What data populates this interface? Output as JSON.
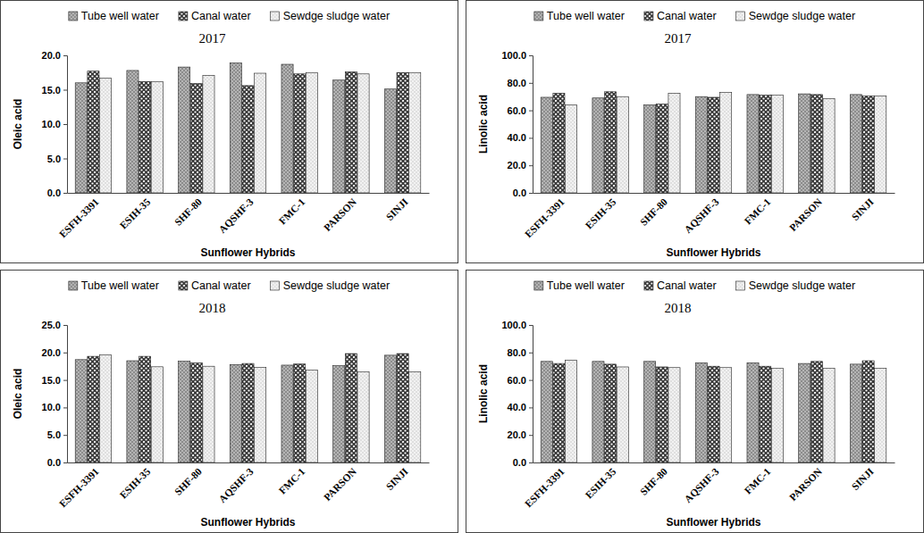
{
  "chart_data": [
    {
      "type": "bar",
      "title": "2017",
      "x_label": "Sunflower Hybrids",
      "y_label": "Oleic acid",
      "categories": [
        "ESFH-3391",
        "ESIH-35",
        "SHF-80",
        "AQSHF-3",
        "FMC-1",
        "PARSON",
        "SINJI"
      ],
      "series": [
        {
          "name": "Tube well water",
          "color": "#8c8c8c",
          "values": [
            16.0,
            17.8,
            18.3,
            18.9,
            18.7,
            16.4,
            15.1
          ]
        },
        {
          "name": "Canal water",
          "color": "#3c3c3c",
          "values": [
            17.7,
            16.2,
            15.9,
            15.6,
            17.3,
            17.6,
            17.5
          ]
        },
        {
          "name": "Sewdge sludge water",
          "color": "#f2f2f2",
          "values": [
            16.7,
            16.2,
            17.1,
            17.4,
            17.5,
            17.3,
            17.5
          ]
        }
      ],
      "ylim": [
        0,
        20
      ],
      "yticks": [
        {
          "value": 0,
          "label": "0.0"
        },
        {
          "value": 5,
          "label": "5.0"
        },
        {
          "value": 10,
          "label": "10.0"
        },
        {
          "value": 15,
          "label": "15.0"
        },
        {
          "value": 20,
          "label": "20.0"
        }
      ],
      "legend": "top",
      "grid": false
    },
    {
      "type": "bar",
      "title": "2017",
      "x_label": "Sunflower Hybrids",
      "y_label": "Linolic acid",
      "categories": [
        "ESFH-3391",
        "ESIH-35",
        "SHF-80",
        "AQSHF-3",
        "FMC-1",
        "PARSON",
        "SINJI"
      ],
      "series": [
        {
          "name": "Tube well water",
          "color": "#8c8c8c",
          "values": [
            69.5,
            69.0,
            64.0,
            70.0,
            71.5,
            72.0,
            71.5
          ]
        },
        {
          "name": "Canal water",
          "color": "#3c3c3c",
          "values": [
            72.5,
            73.5,
            64.5,
            69.5,
            71.0,
            71.5,
            70.5
          ]
        },
        {
          "name": "Sewdge sludge water",
          "color": "#f2f2f2",
          "values": [
            64.0,
            70.0,
            72.5,
            73.0,
            71.0,
            68.5,
            70.5
          ]
        }
      ],
      "ylim": [
        0,
        100
      ],
      "yticks": [
        {
          "value": 0,
          "label": "0.0"
        },
        {
          "value": 20,
          "label": "20.0"
        },
        {
          "value": 40,
          "label": "40.0"
        },
        {
          "value": 60,
          "label": "60.0"
        },
        {
          "value": 80,
          "label": "80.0"
        },
        {
          "value": 100,
          "label": "100.0"
        }
      ],
      "legend": "top",
      "grid": false
    },
    {
      "type": "bar",
      "title": "2018",
      "x_label": "Sunflower Hybrids",
      "y_label": "Oleic acid",
      "categories": [
        "ESFH-3391",
        "ESIH-35",
        "SHF-80",
        "AQSHF-3",
        "FMC-1",
        "PARSON",
        "SINJI"
      ],
      "series": [
        {
          "name": "Tube well water",
          "color": "#8c8c8c",
          "values": [
            18.7,
            18.5,
            18.4,
            17.8,
            17.7,
            17.6,
            19.5
          ]
        },
        {
          "name": "Canal water",
          "color": "#3c3c3c",
          "values": [
            19.3,
            19.3,
            18.1,
            18.0,
            17.9,
            19.8,
            19.8
          ]
        },
        {
          "name": "Sewdge sludge water",
          "color": "#f2f2f2",
          "values": [
            19.6,
            17.4,
            17.5,
            17.3,
            16.8,
            16.5,
            16.5
          ]
        }
      ],
      "ylim": [
        0,
        25
      ],
      "yticks": [
        {
          "value": 0,
          "label": "0.0"
        },
        {
          "value": 5,
          "label": "5.0"
        },
        {
          "value": 10,
          "label": "10.0"
        },
        {
          "value": 15,
          "label": "15.0"
        },
        {
          "value": 20,
          "label": "20.0"
        },
        {
          "value": 25,
          "label": "25.0"
        }
      ],
      "legend": "top",
      "grid": false
    },
    {
      "type": "bar",
      "title": "2018",
      "x_label": "Sunflower Hybrids",
      "y_label": "Linolic acid",
      "categories": [
        "ESFH-3391",
        "ESIH-35",
        "SHF-80",
        "AQSHF-3",
        "FMC-1",
        "PARSON",
        "SINJI"
      ],
      "series": [
        {
          "name": "Tube well water",
          "color": "#8c8c8c",
          "values": [
            73.5,
            73.5,
            73.5,
            72.5,
            72.5,
            72.0,
            71.5
          ]
        },
        {
          "name": "Canal water",
          "color": "#3c3c3c",
          "values": [
            72.0,
            71.5,
            69.5,
            70.0,
            70.0,
            73.5,
            74.0
          ]
        },
        {
          "name": "Sewdge sludge water",
          "color": "#f2f2f2",
          "values": [
            74.5,
            69.5,
            69.0,
            69.0,
            68.5,
            68.5,
            68.5
          ]
        }
      ],
      "ylim": [
        0,
        100
      ],
      "yticks": [
        {
          "value": 0,
          "label": "0.0"
        },
        {
          "value": 20,
          "label": "20.0"
        },
        {
          "value": 40,
          "label": "40.0"
        },
        {
          "value": 60,
          "label": "60.0"
        },
        {
          "value": 80,
          "label": "80.0"
        },
        {
          "value": 100,
          "label": "100.0"
        }
      ],
      "legend": "top",
      "grid": false
    }
  ]
}
